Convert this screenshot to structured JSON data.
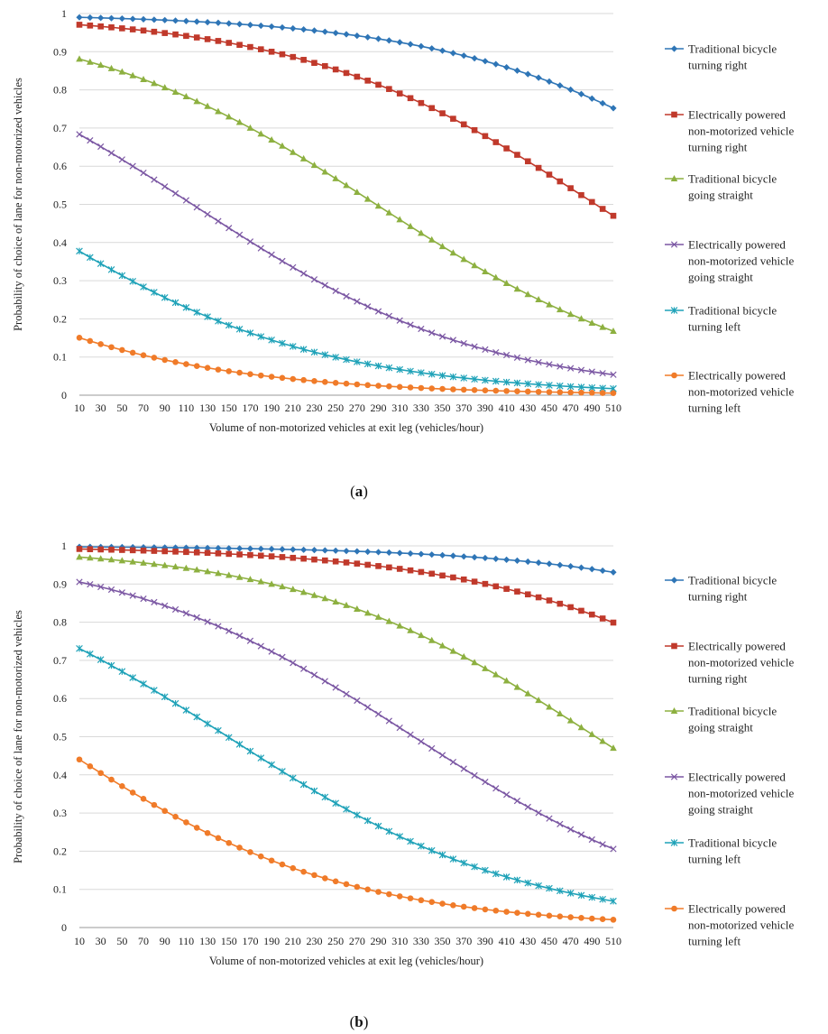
{
  "x_tick_labels": [
    "10",
    "30",
    "50",
    "70",
    "90",
    "110",
    "130",
    "150",
    "170",
    "190",
    "210",
    "230",
    "250",
    "270",
    "290",
    "310",
    "330",
    "350",
    "370",
    "390",
    "410",
    "430",
    "450",
    "470",
    "490",
    "510"
  ],
  "chart_data": [
    {
      "panel": "(a)",
      "caption_letter": "a",
      "type": "line",
      "xlabel": "Volume of non-motorized vehicles at exit leg (vehicles/hour)",
      "ylabel": "Probability of choice of lane for non-motorized vehicles",
      "xlim": [
        10,
        510
      ],
      "x_step": 10,
      "ylim": [
        0,
        1
      ],
      "y_ticks": [
        "0",
        "0.1",
        "0.2",
        "0.3",
        "0.4",
        "0.5",
        "0.6",
        "0.7",
        "0.8",
        "0.9",
        "1"
      ],
      "grid": true,
      "legend_position": "right",
      "series": [
        {
          "name": "Traditional bicycle turning right",
          "legend_lines": [
            "Traditional bicycle",
            "turning right"
          ],
          "color": "#2e75b6",
          "marker": "diamond",
          "logit": [
            4.6,
            1.11
          ]
        },
        {
          "name": "Electrically powered non-motorized vehicle turning right",
          "legend_lines": [
            "Electrically powered",
            "non-motorized vehicle",
            "turning right"
          ],
          "color": "#c0392b",
          "marker": "square",
          "logit": [
            3.5,
            -0.12
          ]
        },
        {
          "name": "Traditional bicycle going straight",
          "legend_lines": [
            "Traditional bicycle",
            "going straight"
          ],
          "color": "#8db040",
          "marker": "triangle",
          "logit": [
            2.0,
            -1.6
          ]
        },
        {
          "name": "Electrically powered non-motorized vehicle going straight",
          "legend_lines": [
            "Electrically powered",
            "non-motorized vehicle",
            "going straight"
          ],
          "color": "#7b57a3",
          "marker": "x",
          "logit": [
            0.77,
            -2.87
          ]
        },
        {
          "name": "Traditional bicycle turning left",
          "legend_lines": [
            "Traditional bicycle",
            "turning left"
          ],
          "color": "#1fa2b8",
          "marker": "star",
          "logit": [
            -0.5,
            -4.05
          ]
        },
        {
          "name": "Electrically powered non-motorized vehicle turning left",
          "legend_lines": [
            "Electrically powered",
            "non-motorized vehicle",
            "turning left"
          ],
          "color": "#f07b29",
          "marker": "circle",
          "logit": [
            -1.73,
            -5.2
          ]
        }
      ]
    },
    {
      "panel": "(b)",
      "caption_letter": "b",
      "type": "line",
      "xlabel": "Volume of non-motorized vehicles at exit leg (vehicles/hour)",
      "ylabel": "Probability of choice of lane for non-motorized vehicles",
      "xlim": [
        10,
        510
      ],
      "x_step": 10,
      "ylim": [
        0,
        1
      ],
      "y_ticks": [
        "0",
        "0.1",
        "0.2",
        "0.3",
        "0.4",
        "0.5",
        "0.6",
        "0.7",
        "0.8",
        "0.9",
        "1"
      ],
      "grid": true,
      "legend_position": "right",
      "series": [
        {
          "name": "Traditional bicycle turning right",
          "legend_lines": [
            "Traditional bicycle",
            "turning right"
          ],
          "color": "#2e75b6",
          "marker": "diamond",
          "logit": [
            6.0,
            2.6
          ]
        },
        {
          "name": "Electrically powered non-motorized vehicle turning right",
          "legend_lines": [
            "Electrically powered",
            "non-motorized vehicle",
            "turning right"
          ],
          "color": "#c0392b",
          "marker": "square",
          "logit": [
            4.8,
            1.38
          ]
        },
        {
          "name": "Traditional bicycle going straight",
          "legend_lines": [
            "Traditional bicycle",
            "going straight"
          ],
          "color": "#8db040",
          "marker": "triangle",
          "logit": [
            3.5,
            -0.12
          ]
        },
        {
          "name": "Electrically powered non-motorized vehicle going straight",
          "legend_lines": [
            "Electrically powered",
            "non-motorized vehicle",
            "going straight"
          ],
          "color": "#7b57a3",
          "marker": "x",
          "logit": [
            2.26,
            -1.35
          ]
        },
        {
          "name": "Traditional bicycle turning left",
          "legend_lines": [
            "Traditional bicycle",
            "turning left"
          ],
          "color": "#1fa2b8",
          "marker": "star",
          "logit": [
            1.0,
            -2.6
          ]
        },
        {
          "name": "Electrically powered non-motorized vehicle turning left",
          "legend_lines": [
            "Electrically powered",
            "non-motorized vehicle",
            "turning left"
          ],
          "color": "#f07b29",
          "marker": "circle",
          "logit": [
            -0.24,
            -3.87
          ]
        }
      ]
    }
  ]
}
